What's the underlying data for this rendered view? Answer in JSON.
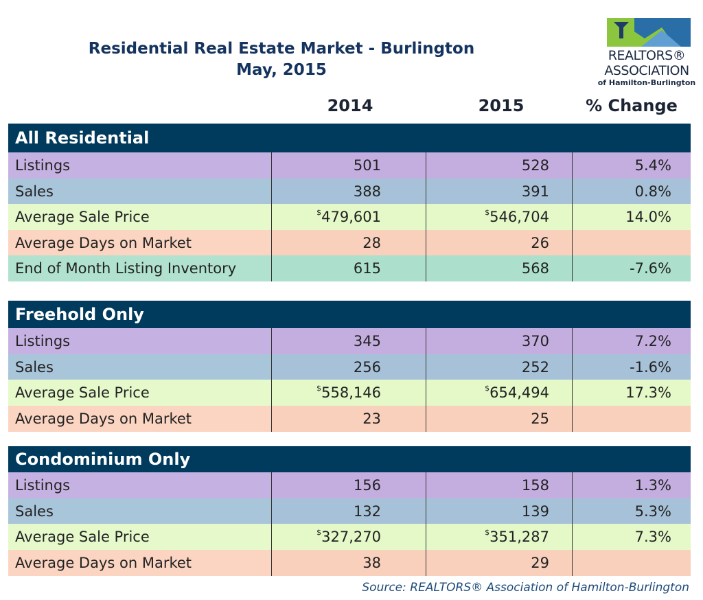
{
  "header": {
    "title": "Residential Real Estate Market - Burlington",
    "subtitle": "May, 2015"
  },
  "logo": {
    "name": "REALTORS®",
    "association": "ASSOCIATION",
    "region": "of Hamilton-Burlington"
  },
  "table": {
    "columns": [
      "2014",
      "2015",
      "% Change"
    ],
    "sections": [
      {
        "title": "All Residential",
        "rows": [
          [
            "Listings",
            "501",
            "528",
            "5.4%"
          ],
          [
            "Sales",
            "388",
            "391",
            "0.8%"
          ],
          [
            "Average Sale Price",
            {
              "symbol": "$",
              "text": "479,601"
            },
            {
              "symbol": "$",
              "text": "546,704"
            },
            "14.0%"
          ],
          [
            "Average Days on Market",
            "28",
            "26",
            null
          ],
          [
            "End of Month Listing Inventory",
            "615",
            "568",
            "-7.6%"
          ]
        ]
      },
      {
        "title": "Freehold Only",
        "rows": [
          [
            "Listings",
            "345",
            "370",
            "7.2%"
          ],
          [
            "Sales",
            "256",
            "252",
            "-1.6%"
          ],
          [
            "Average Sale Price",
            {
              "symbol": "$",
              "text": "558,146"
            },
            {
              "symbol": "$",
              "text": "654,494"
            },
            "17.3%"
          ],
          [
            "Average Days on Market",
            "23",
            "25",
            null
          ]
        ]
      },
      {
        "title": "Condominium Only",
        "rows": [
          [
            "Listings",
            "156",
            "158",
            "1.3%"
          ],
          [
            "Sales",
            "132",
            "139",
            "5.3%"
          ],
          [
            "Average Sale Price",
            {
              "symbol": "$",
              "text": "327,270"
            },
            {
              "symbol": "$",
              "text": "351,287"
            },
            "7.3%"
          ],
          [
            "Average Days on Market",
            "38",
            "29",
            null
          ]
        ]
      }
    ]
  },
  "footer": {
    "source": "Source:  REALTORS® Association of Hamilton-Burlington"
  }
}
